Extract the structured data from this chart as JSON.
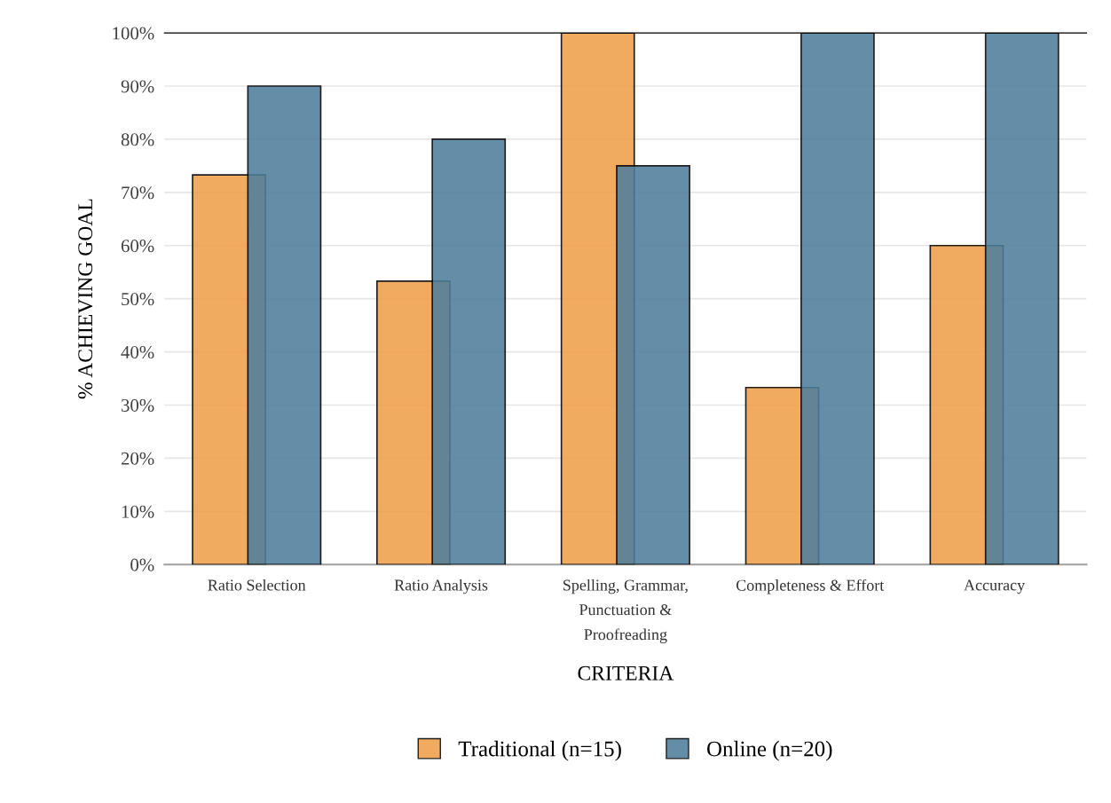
{
  "chart_data": {
    "type": "bar",
    "xlabel": "CRITERIA",
    "ylabel": "% ACHIEVING GOAL",
    "categories": [
      "Ratio Selection",
      "Ratio Analysis",
      "Spelling, Grammar,\nPunctuation &\nProofreading",
      "Completeness & Effort",
      "Accuracy"
    ],
    "series": [
      {
        "name": "Traditional (n=15)",
        "color": "#f0a04b",
        "values": [
          73.3,
          53.3,
          100,
          33.3,
          60
        ]
      },
      {
        "name": "Online (n=20)",
        "color": "#4f7f9c",
        "values": [
          90,
          80,
          75,
          100,
          100
        ]
      }
    ],
    "ylim": [
      0,
      100
    ],
    "yticks": [
      {
        "value": 0,
        "label": "0%"
      },
      {
        "value": 10,
        "label": "10%"
      },
      {
        "value": 20,
        "label": "20%"
      },
      {
        "value": 30,
        "label": "30%"
      },
      {
        "value": 40,
        "label": "40%"
      },
      {
        "value": 50,
        "label": "50%"
      },
      {
        "value": 60,
        "label": "60%"
      },
      {
        "value": 70,
        "label": "70%"
      },
      {
        "value": 80,
        "label": "80%"
      },
      {
        "value": 90,
        "label": "90%"
      },
      {
        "value": 100,
        "label": "100%"
      }
    ],
    "grid": "y",
    "legend": "bottom"
  }
}
